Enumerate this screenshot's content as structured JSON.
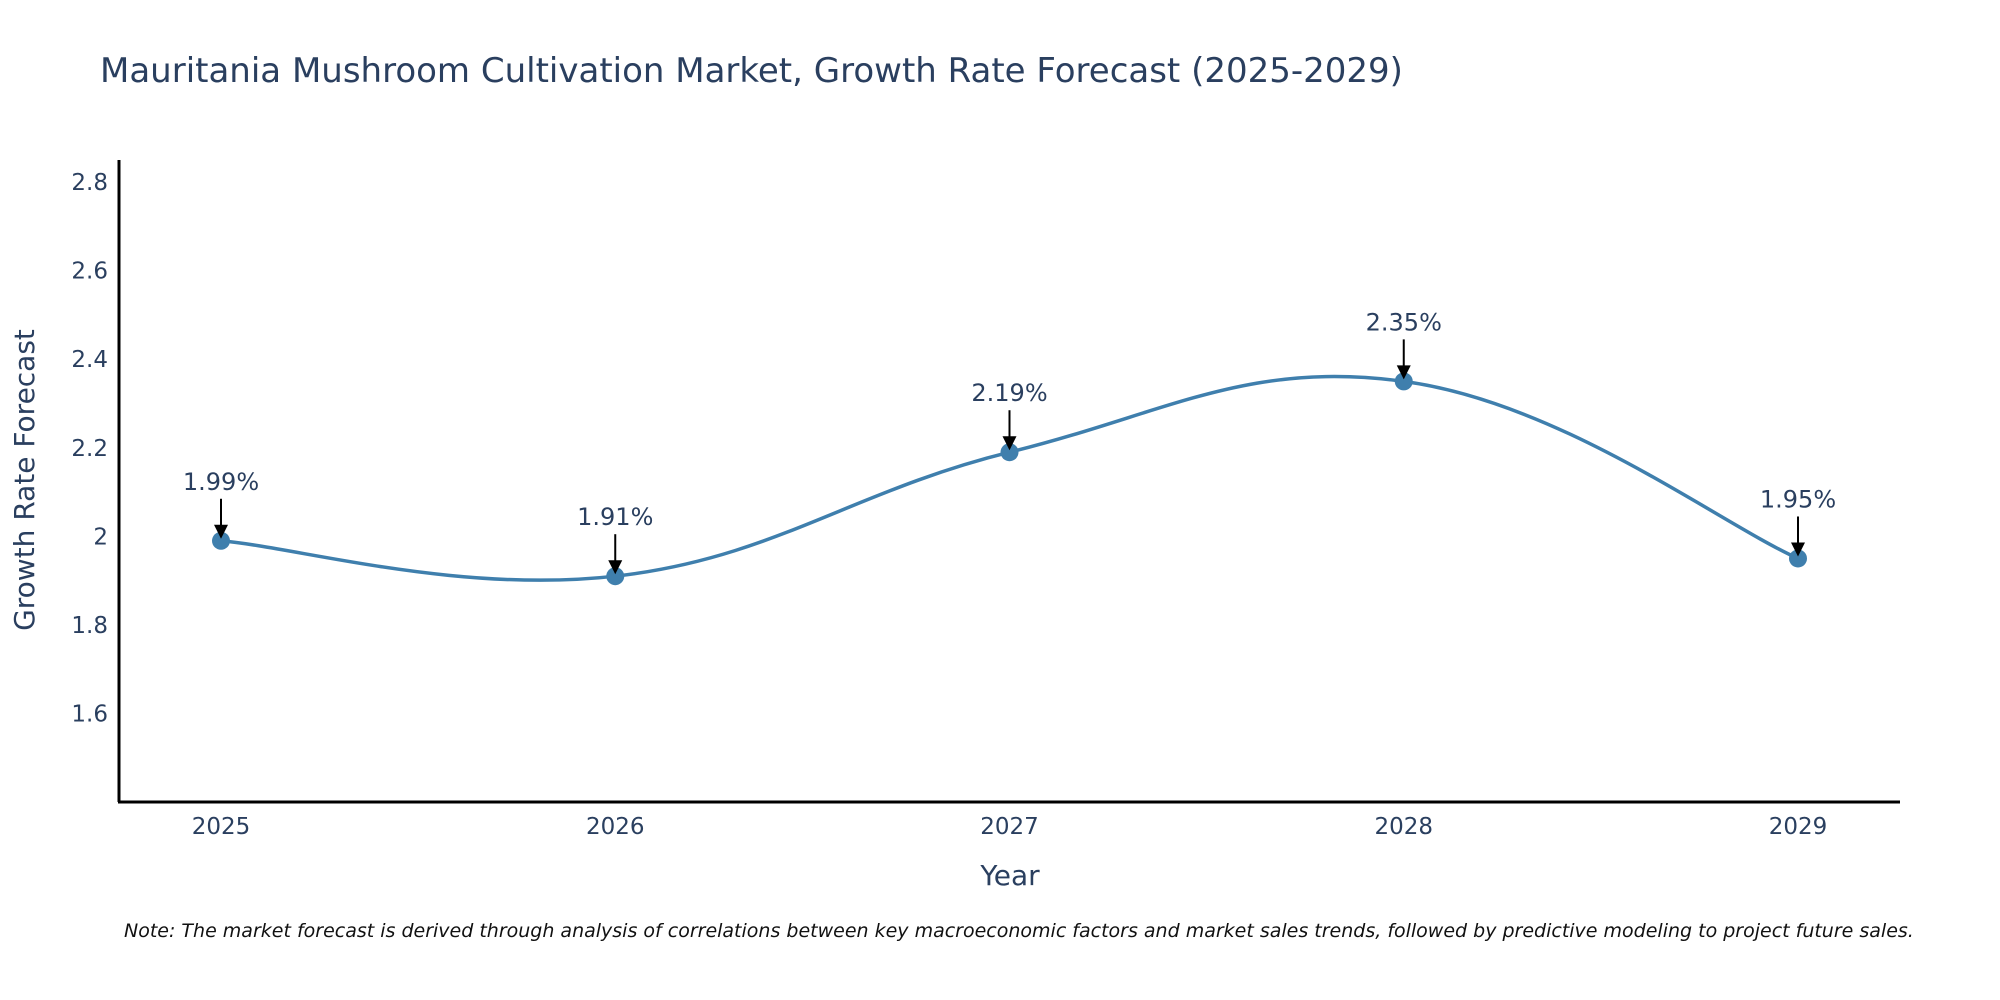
{
  "chart_data": {
    "type": "line",
    "title": "Mauritania Mushroom Cultivation Market, Growth Rate Forecast (2025-2029)",
    "xlabel": "Year",
    "ylabel": "Growth Rate Forecast",
    "categories": [
      "2025",
      "2026",
      "2027",
      "2028",
      "2029"
    ],
    "series": [
      {
        "name": "Growth Rate Forecast",
        "values": [
          1.99,
          1.91,
          2.19,
          2.35,
          1.95
        ],
        "color": "#3f7fad"
      }
    ],
    "annotations": [
      "1.99%",
      "1.91%",
      "2.19%",
      "2.35%",
      "1.95%"
    ],
    "ylim": [
      1.4,
      2.85
    ],
    "yticks": [
      1.6,
      1.8,
      2,
      2.2,
      2.4,
      2.6,
      2.8
    ],
    "ytick_labels": [
      "1.6",
      "1.8",
      "2",
      "2.2",
      "2.4",
      "2.6",
      "2.8"
    ],
    "line_shape": "spline",
    "grid": false,
    "legend": "none"
  },
  "note": "Note: The market forecast is derived through analysis of correlations between key macroeconomic factors and market sales trends, followed by predictive modeling to project future sales."
}
